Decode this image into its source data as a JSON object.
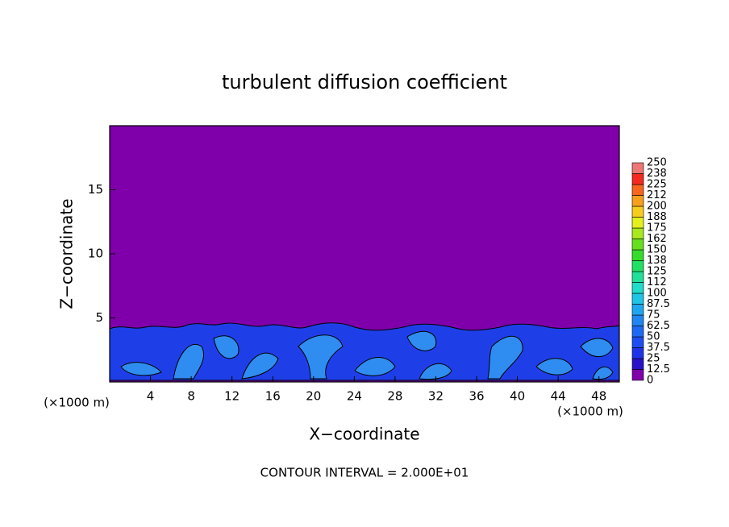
{
  "chart_data": {
    "type": "contour",
    "title": "turbulent diffusion coefficient",
    "xlabel": "X−coordinate",
    "ylabel": "Z−coordinate",
    "x_unit": "(×1000 m)",
    "y_unit": "(×1000 m)",
    "annotation": "CONTOUR INTERVAL = 2.000E+01",
    "xlim": [
      0,
      50
    ],
    "ylim": [
      0,
      20
    ],
    "xticks": [
      4,
      8,
      12,
      16,
      20,
      24,
      28,
      32,
      36,
      40,
      44,
      48
    ],
    "yticks": [
      5,
      10,
      15
    ],
    "background_color": "#7f00aa",
    "colorbar": {
      "levels": [
        0,
        12.5,
        25,
        37.5,
        50,
        62.5,
        75,
        87.5,
        100,
        {
          "value": 112.5,
          "label": "112"
        },
        125,
        {
          "value": 137.5,
          "label": "138"
        },
        150,
        {
          "value": 162.5,
          "label": "162"
        },
        175,
        {
          "value": 187.5,
          "label": "188"
        },
        200,
        {
          "value": 212.5,
          "label": "212"
        },
        225,
        {
          "value": 237.5,
          "label": "238"
        },
        250
      ],
      "colors": [
        "#7f00aa",
        "#2a12c8",
        "#1f34e6",
        "#1e4ef2",
        "#1f6af2",
        "#2086f2",
        "#20a6f0",
        "#20c4e6",
        "#20dcc8",
        "#20e09a",
        "#22e064",
        "#36dc2c",
        "#66e01e",
        "#a8e81e",
        "#e4f01e",
        "#f8cc1e",
        "#f89e1e",
        "#f8661e",
        "#f42a20",
        "#ee7676"
      ]
    }
  }
}
